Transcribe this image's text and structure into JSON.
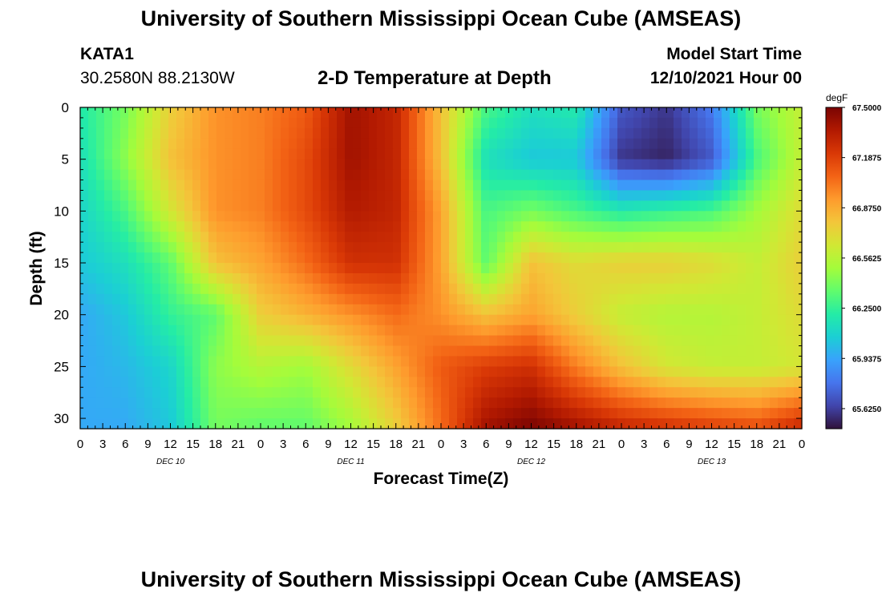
{
  "titles": {
    "top": "University of Southern Mississippi Ocean Cube (AMSEAS)",
    "bottom": "University of Southern Mississippi Ocean Cube (AMSEAS)"
  },
  "header": {
    "station_id": "KATA1",
    "station_coords": "30.2580N  88.2130W",
    "chart_title": "2-D Temperature at Depth",
    "model_start_label": "Model Start Time",
    "model_start_value": "12/10/2021 Hour 00"
  },
  "chart_data": {
    "type": "heatmap",
    "title": "2-D Temperature at Depth",
    "xlabel": "Forecast Time(Z)",
    "ylabel": "Depth (ft)",
    "colorbar_unit": "degF",
    "x_tick_labels": [
      "0",
      "3",
      "6",
      "9",
      "12",
      "15",
      "18",
      "21",
      "0",
      "3",
      "6",
      "9",
      "12",
      "15",
      "18",
      "21",
      "0",
      "3",
      "6",
      "9",
      "12",
      "15",
      "18",
      "21",
      "0",
      "3",
      "6",
      "9",
      "12",
      "15",
      "18",
      "21",
      "0"
    ],
    "x_range_hours": [
      0,
      96
    ],
    "day_labels": [
      "DEC 10",
      "DEC 11",
      "DEC 12",
      "DEC 13"
    ],
    "y_tick_labels": [
      "0",
      "5",
      "10",
      "15",
      "20",
      "25",
      "30"
    ],
    "y_range_ft": [
      0,
      31
    ],
    "colorbar_ticks": [
      "67.5000",
      "67.1875",
      "66.8750",
      "66.5625",
      "66.2500",
      "65.9375",
      "65.6250"
    ],
    "value_range_degF": [
      65.5,
      67.5
    ],
    "colors": [
      "#30123b",
      "#4145ab",
      "#4675ed",
      "#39a2fc",
      "#1bcfd4",
      "#24eca6",
      "#61fc6c",
      "#a4fc3b",
      "#d1e834",
      "#f3c63a",
      "#fe9b2d",
      "#f36315",
      "#d93806",
      "#b11901",
      "#7a0402"
    ],
    "time_hours": [
      0,
      6,
      12,
      18,
      24,
      30,
      36,
      42,
      48,
      54,
      60,
      66,
      72,
      78,
      84,
      90,
      96
    ],
    "depth_ft": [
      0,
      5,
      10,
      15,
      20,
      25,
      31
    ],
    "temperature_degF": [
      [
        66.2,
        66.4,
        66.75,
        66.95,
        67.0,
        67.1,
        67.4,
        67.3,
        66.8,
        66.3,
        66.15,
        66.2,
        65.7,
        65.6,
        65.8,
        66.4,
        66.6
      ],
      [
        66.15,
        66.45,
        66.8,
        66.95,
        67.0,
        67.15,
        67.4,
        67.3,
        66.8,
        66.15,
        66.05,
        66.05,
        65.6,
        65.55,
        65.7,
        66.3,
        66.6
      ],
      [
        66.1,
        66.3,
        66.65,
        66.95,
        67.0,
        67.15,
        67.35,
        67.3,
        66.9,
        66.3,
        66.4,
        66.3,
        66.2,
        66.25,
        66.3,
        66.5,
        66.7
      ],
      [
        66.05,
        66.15,
        66.35,
        66.8,
        66.9,
        67.05,
        67.25,
        67.25,
        66.9,
        66.35,
        66.8,
        66.7,
        66.75,
        66.75,
        66.7,
        66.6,
        66.75
      ],
      [
        65.95,
        66.05,
        66.25,
        66.35,
        66.75,
        66.85,
        66.95,
        67.05,
        66.95,
        66.8,
        66.9,
        66.75,
        66.6,
        66.55,
        66.55,
        66.6,
        66.7
      ],
      [
        65.95,
        66.0,
        66.1,
        66.45,
        66.55,
        66.5,
        66.7,
        66.9,
        67.1,
        67.2,
        67.25,
        67.0,
        66.8,
        66.65,
        66.6,
        66.6,
        66.65
      ],
      [
        65.95,
        65.95,
        66.05,
        66.4,
        66.35,
        66.35,
        66.5,
        66.75,
        67.05,
        67.4,
        67.5,
        67.4,
        67.3,
        67.25,
        67.2,
        67.15,
        67.3
      ]
    ]
  }
}
